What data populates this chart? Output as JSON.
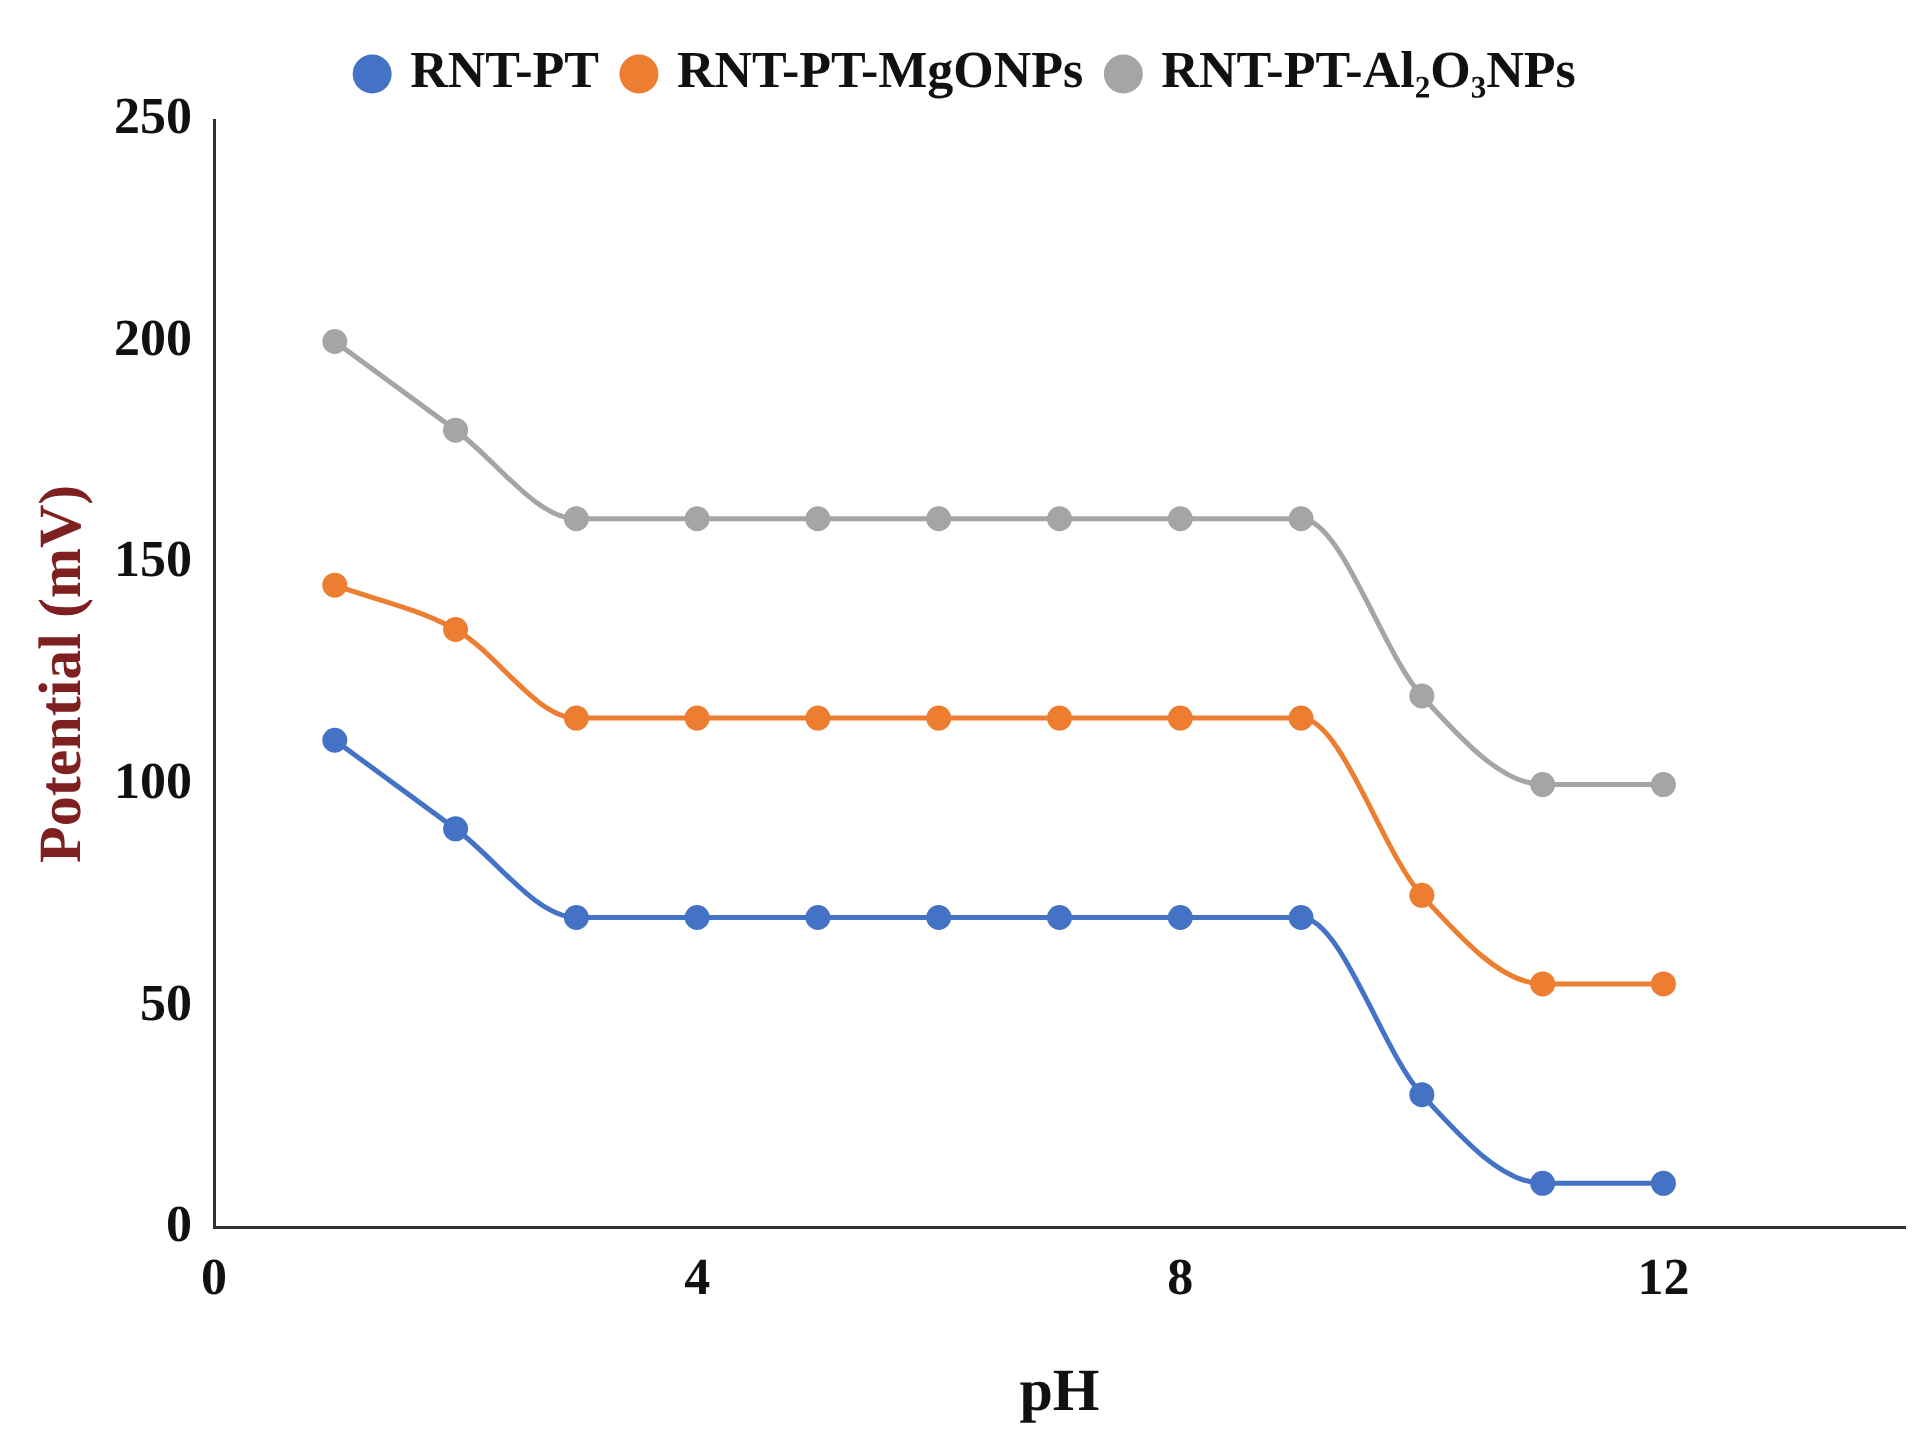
{
  "chart_data": {
    "type": "line",
    "xlabel": "pH",
    "ylabel": "Potential (mV)",
    "x": [
      1,
      2,
      3,
      4,
      5,
      6,
      7,
      8,
      9,
      10,
      11,
      12
    ],
    "series": [
      {
        "name": "RNT-PT",
        "color": "#4472c4",
        "values": [
          110,
          90,
          70,
          70,
          70,
          70,
          70,
          70,
          70,
          30,
          10,
          10
        ]
      },
      {
        "name": "RNT-PT-MgONPs",
        "color": "#ed7d31",
        "values": [
          145,
          135,
          115,
          115,
          115,
          115,
          115,
          115,
          115,
          75,
          55,
          55
        ]
      },
      {
        "name": "RNT-PT-Al₂O₃NPs",
        "color": "#a5a5a5",
        "values": [
          200,
          180,
          160,
          160,
          160,
          160,
          160,
          160,
          160,
          120,
          100,
          100
        ]
      }
    ],
    "xlim": [
      0,
      14
    ],
    "xticks": [
      0,
      4,
      8,
      12
    ],
    "ylim": [
      0,
      250
    ],
    "yticks": [
      0,
      50,
      100,
      150,
      200,
      250
    ],
    "grid": false,
    "legend": "top",
    "marker": "circle",
    "line_style": "solid"
  }
}
